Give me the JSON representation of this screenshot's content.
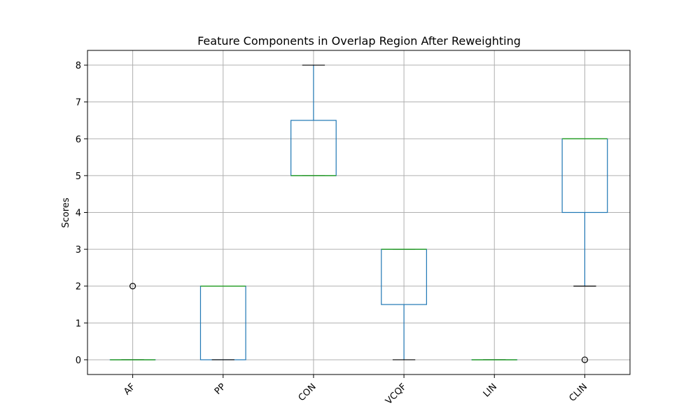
{
  "chart_data": {
    "type": "boxplot",
    "title": "Feature Components in Overlap Region After Reweighting",
    "xlabel": "",
    "ylabel": "Scores",
    "ylim": [
      -0.4,
      8.4
    ],
    "yticks": [
      0,
      1,
      2,
      3,
      4,
      5,
      6,
      7,
      8
    ],
    "grid": true,
    "categories": [
      "AF",
      "PP",
      "CON",
      "VCQF",
      "LIN",
      "CLIN"
    ],
    "boxes": [
      {
        "name": "AF",
        "whislo": 0,
        "q1": 0,
        "med": 0,
        "q3": 0,
        "whishi": 0,
        "fliers": [
          2
        ]
      },
      {
        "name": "PP",
        "whislo": 0,
        "q1": 0,
        "med": 2,
        "q3": 2,
        "whishi": 2,
        "fliers": []
      },
      {
        "name": "CON",
        "whislo": 5,
        "q1": 5,
        "med": 5,
        "q3": 6.5,
        "whishi": 8,
        "fliers": []
      },
      {
        "name": "VCQF",
        "whislo": 0,
        "q1": 1.5,
        "med": 3,
        "q3": 3,
        "whishi": 3,
        "fliers": []
      },
      {
        "name": "LIN",
        "whislo": 0,
        "q1": 0,
        "med": 0,
        "q3": 0,
        "whishi": 0,
        "fliers": []
      },
      {
        "name": "CLIN",
        "whislo": 2,
        "q1": 4,
        "med": 6,
        "q3": 6,
        "whishi": 6,
        "fliers": [
          0
        ]
      }
    ],
    "colors": {
      "box": "#1f77b4",
      "median": "#2ca02c",
      "cap": "#000000",
      "grid": "#b0b0b0"
    }
  }
}
